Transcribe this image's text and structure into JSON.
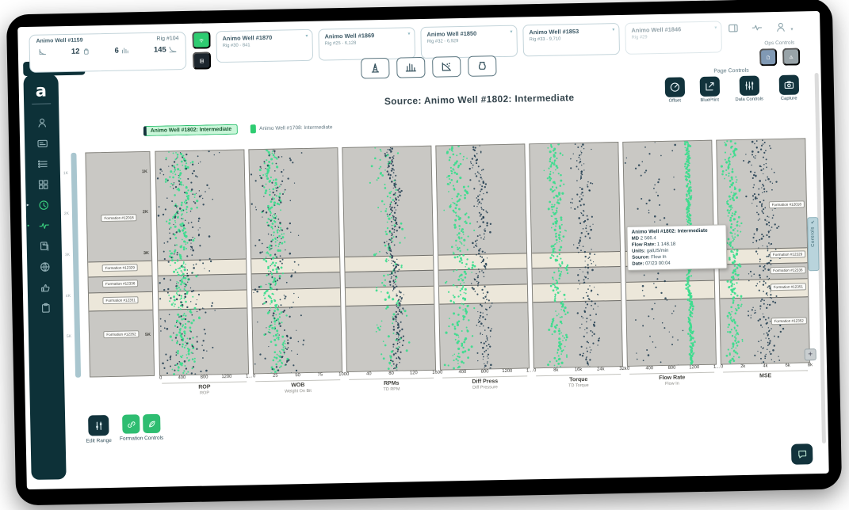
{
  "app_logo": "a",
  "topbar": {
    "primary_card": {
      "well": "Animo Well #1159",
      "rig": "Rig #104",
      "stats": [
        {
          "icon": "rop-curve",
          "value": ""
        },
        {
          "icon": "bag",
          "value": "12"
        },
        {
          "icon": "chart-sm",
          "value": "6"
        },
        {
          "icon": "decline",
          "value": "145"
        }
      ]
    },
    "connection_buttons": [
      {
        "icon": "wifi",
        "style": "green"
      },
      {
        "icon": "server",
        "style": "dark"
      }
    ],
    "well_cards": [
      {
        "well": "Animo Well #1870",
        "rig": "Rig #30 - 841"
      },
      {
        "well": "Animo Well #1869",
        "rig": "Rig #25 - 6,128"
      },
      {
        "well": "Animo Well #1850",
        "rig": "Rig #32 - 6,929"
      },
      {
        "well": "Animo Well #1853",
        "rig": "Rig #33 - 9,710"
      },
      {
        "well": "Animo Well #1846",
        "rig": "Rig #29",
        "dim": true
      }
    ],
    "right_icons": [
      {
        "name": "panel",
        "icon": "panel"
      },
      {
        "name": "activity",
        "icon": "activity"
      },
      {
        "name": "account",
        "icon": "person",
        "caret": true
      }
    ]
  },
  "ops_controls": {
    "label": "Ops Controls",
    "buttons": [
      {
        "name": "ops-report",
        "icon": "doc",
        "style": "slate"
      },
      {
        "name": "ops-alerts",
        "icon": "warning",
        "style": "gray"
      }
    ]
  },
  "toolbar_buttons": [
    {
      "name": "rig-view",
      "icon": "derrick"
    },
    {
      "name": "wells-view",
      "icon": "wells-chart"
    },
    {
      "name": "scatter-view",
      "icon": "scatter"
    },
    {
      "name": "bit-view",
      "icon": "bit"
    }
  ],
  "page_controls": {
    "label": "Page Controls",
    "buttons": [
      {
        "label": "Offset",
        "icon": "offset"
      },
      {
        "label": "BluePrint",
        "icon": "blueprint"
      },
      {
        "label": "Data Controls",
        "icon": "sliders",
        "wide": true
      },
      {
        "label": "Capture",
        "icon": "capture"
      }
    ]
  },
  "title": "Source: Animo Well #1802: Intermediate",
  "legend": [
    {
      "label": "Animo Well #1802: Intermediate",
      "selected": true
    },
    {
      "label": "Animo Well #1708: Intermediate",
      "selected": false
    }
  ],
  "sidebar_items": [
    {
      "name": "profile",
      "icon": "person"
    },
    {
      "name": "wells",
      "icon": "card"
    },
    {
      "name": "activity-list",
      "icon": "list"
    },
    {
      "name": "dashboard",
      "icon": "grid"
    },
    {
      "name": "time-view",
      "icon": "clock",
      "active": true,
      "marker": "caret"
    },
    {
      "name": "performance",
      "icon": "pulse",
      "active": true,
      "marker": "dot"
    },
    {
      "name": "documents",
      "icon": "docs"
    },
    {
      "name": "web",
      "icon": "globe"
    },
    {
      "name": "approvals",
      "icon": "thumb"
    },
    {
      "name": "reports",
      "icon": "clipboard"
    }
  ],
  "tooltip": {
    "title": "Animo Well #1802: Intermediate",
    "rows": [
      {
        "label": "MD",
        "value": "2 566.4"
      },
      {
        "label": "Flow Rate:",
        "value": "1 148.18"
      },
      {
        "label": "Units:",
        "value": "galUS/min"
      },
      {
        "label": "Source:",
        "value": "Flow In"
      },
      {
        "label": "Date:",
        "value": "07/23 00:04"
      }
    ],
    "anchor_depth": 2566.4,
    "anchor_track": "Flow Rate"
  },
  "controls_tab": {
    "label": "Controls"
  },
  "bottom": {
    "edit_range_label": "Edit Range",
    "formation_controls_label": "Formation Controls",
    "formation_buttons": [
      {
        "name": "formation-link",
        "icon": "link"
      },
      {
        "name": "formation-style",
        "icon": "leaf"
      }
    ]
  },
  "colors": {
    "dark_teal": "#12333c",
    "accent_green": "#2ecc71",
    "scatter_green": "#3ddc8e",
    "scatter_navy": "#1d3a4d",
    "track_gray": "#c9c8c4",
    "track_cream": "#ece7da",
    "legend_selected_bg": "#c9f6d9"
  },
  "chart_data": {
    "type": "scatter",
    "title": "Source: Animo Well #1802: Intermediate",
    "legend_entries": [
      "Animo Well #1802: Intermediate",
      "Animo Well #1708: Intermediate"
    ],
    "depth_axis": {
      "range": [
        500,
        6000
      ],
      "col_labels": [
        {
          "label": "1K",
          "depth": 1000
        },
        {
          "label": "2K",
          "depth": 2000
        },
        {
          "label": "3K",
          "depth": 3000
        },
        {
          "label": "5K",
          "depth": 5000
        }
      ],
      "rail_labels": [
        {
          "label": "1K",
          "depth": 1000
        },
        {
          "label": "2K",
          "depth": 2000
        },
        {
          "label": "3K",
          "depth": 3000
        },
        {
          "label": "4K",
          "depth": 4000
        },
        {
          "label": "5K",
          "depth": 5000
        }
      ]
    },
    "formations": [
      {
        "name": "Formation #12018",
        "top_depth": 500,
        "base_depth": 3150,
        "shade": "gray",
        "label_depth": 2100
      },
      {
        "name": "Formation #12329",
        "top_depth": 3150,
        "base_depth": 3520,
        "shade": "cream",
        "label_depth": 3335
      },
      {
        "name": "Formation #12336",
        "top_depth": 3520,
        "base_depth": 3900,
        "shade": "gray",
        "label_depth": 3710
      },
      {
        "name": "Formation #12351",
        "top_depth": 3900,
        "base_depth": 4350,
        "shade": "cream",
        "label_depth": 4125
      },
      {
        "name": "Formation #12352",
        "top_depth": 4350,
        "base_depth": 6000,
        "shade": "gray",
        "label_depth": 4950
      }
    ],
    "tracks": [
      {
        "name": "ROP",
        "sublabel": "ROP",
        "ticks": [
          "0",
          "400",
          "800",
          "1200",
          "1..."
        ],
        "range": [
          0,
          1600
        ],
        "series": [
          {
            "well": "Animo Well #1802",
            "color": "green",
            "count": 300,
            "spread": 0.09,
            "path": [
              [
                0,
                0.22
              ],
              [
                0.25,
                0.3
              ],
              [
                0.5,
                0.24
              ],
              [
                0.75,
                0.3
              ],
              [
                1,
                0.27
              ]
            ]
          },
          {
            "well": "Animo Well #1708",
            "color": "navy",
            "count": 230,
            "spread": 0.2,
            "path": [
              [
                0,
                0.3
              ],
              [
                0.5,
                0.32
              ],
              [
                1,
                0.3
              ]
            ]
          }
        ]
      },
      {
        "name": "WOB",
        "sublabel": "Weight On Bit",
        "ticks": [
          "0",
          "25",
          "50",
          "75",
          "100"
        ],
        "range": [
          0,
          110
        ],
        "series": [
          {
            "well": "Animo Well #1802",
            "color": "green",
            "count": 260,
            "spread": 0.07,
            "path": [
              [
                0,
                0.2
              ],
              [
                0.3,
                0.27
              ],
              [
                0.6,
                0.22
              ],
              [
                1,
                0.3
              ]
            ]
          },
          {
            "well": "Animo Well #1708",
            "color": "navy",
            "count": 180,
            "spread": 0.16,
            "path": [
              [
                0,
                0.28
              ],
              [
                1,
                0.32
              ]
            ]
          }
        ]
      },
      {
        "name": "RPMs",
        "sublabel": "TD RPM",
        "ticks": [
          "0",
          "40",
          "80",
          "120",
          "160"
        ],
        "range": [
          0,
          180
        ],
        "series": [
          {
            "well": "Animo Well #1802",
            "color": "green",
            "count": 130,
            "spread": 0.1,
            "path": [
              [
                0,
                0.45
              ],
              [
                0.5,
                0.5
              ],
              [
                1,
                0.5
              ]
            ]
          },
          {
            "well": "Animo Well #1708",
            "color": "navy",
            "count": 260,
            "spread": 0.04,
            "path": [
              [
                0,
                0.5
              ],
              [
                0.2,
                0.58
              ],
              [
                0.45,
                0.52
              ],
              [
                0.7,
                0.6
              ],
              [
                1,
                0.55
              ]
            ]
          }
        ]
      },
      {
        "name": "Diff Press",
        "sublabel": "Diff Pressure",
        "ticks": [
          "0",
          "400",
          "800",
          "1200",
          "1..."
        ],
        "range": [
          0,
          1600
        ],
        "series": [
          {
            "well": "Animo Well #1802",
            "color": "green",
            "count": 240,
            "spread": 0.09,
            "path": [
              [
                0,
                0.2
              ],
              [
                0.5,
                0.25
              ],
              [
                1,
                0.22
              ]
            ]
          },
          {
            "well": "Animo Well #1708",
            "color": "navy",
            "count": 200,
            "spread": 0.06,
            "path": [
              [
                0,
                0.42
              ],
              [
                0.3,
                0.5
              ],
              [
                0.6,
                0.46
              ],
              [
                1,
                0.52
              ]
            ]
          }
        ]
      },
      {
        "name": "Torque",
        "sublabel": "TD Torque",
        "ticks": [
          "0",
          "8k",
          "16k",
          "24k",
          "32k"
        ],
        "range": [
          0,
          32000
        ],
        "series": [
          {
            "well": "Animo Well #1802",
            "color": "green",
            "count": 240,
            "spread": 0.06,
            "path": [
              [
                0,
                0.26
              ],
              [
                0.5,
                0.3
              ],
              [
                1,
                0.28
              ]
            ]
          },
          {
            "well": "Animo Well #1708",
            "color": "navy",
            "count": 190,
            "spread": 0.07,
            "path": [
              [
                0,
                0.55
              ],
              [
                0.5,
                0.6
              ],
              [
                1,
                0.63
              ]
            ]
          }
        ]
      },
      {
        "name": "Flow Rate",
        "sublabel": "Flow In",
        "ticks": [
          "0",
          "400",
          "800",
          "1200",
          "1..."
        ],
        "range": [
          0,
          1600
        ],
        "series": [
          {
            "well": "Animo Well #1802",
            "color": "green",
            "count": 340,
            "spread": 0.02,
            "path": [
              [
                0,
                0.71
              ],
              [
                0.3,
                0.72
              ],
              [
                0.6,
                0.7
              ],
              [
                1,
                0.72
              ]
            ]
          },
          {
            "well": "Animo Well #1708",
            "color": "navy",
            "count": 90,
            "spread": 0.18,
            "path": [
              [
                0,
                0.3
              ],
              [
                1,
                0.35
              ]
            ]
          }
        ]
      },
      {
        "name": "MSE",
        "sublabel": "",
        "ticks": [
          "0",
          "2k",
          "4k",
          "6k",
          "8k"
        ],
        "range": [
          0,
          8000
        ],
        "series": [
          {
            "well": "Animo Well #1802",
            "color": "green",
            "count": 250,
            "spread": 0.05,
            "path": [
              [
                0,
                0.14
              ],
              [
                0.5,
                0.17
              ],
              [
                1,
                0.15
              ]
            ]
          },
          {
            "well": "Animo Well #1708",
            "color": "navy",
            "count": 260,
            "spread": 0.1,
            "path": [
              [
                0,
                0.45
              ],
              [
                0.4,
                0.52
              ],
              [
                0.7,
                0.48
              ],
              [
                1,
                0.55
              ]
            ]
          }
        ]
      }
    ]
  }
}
